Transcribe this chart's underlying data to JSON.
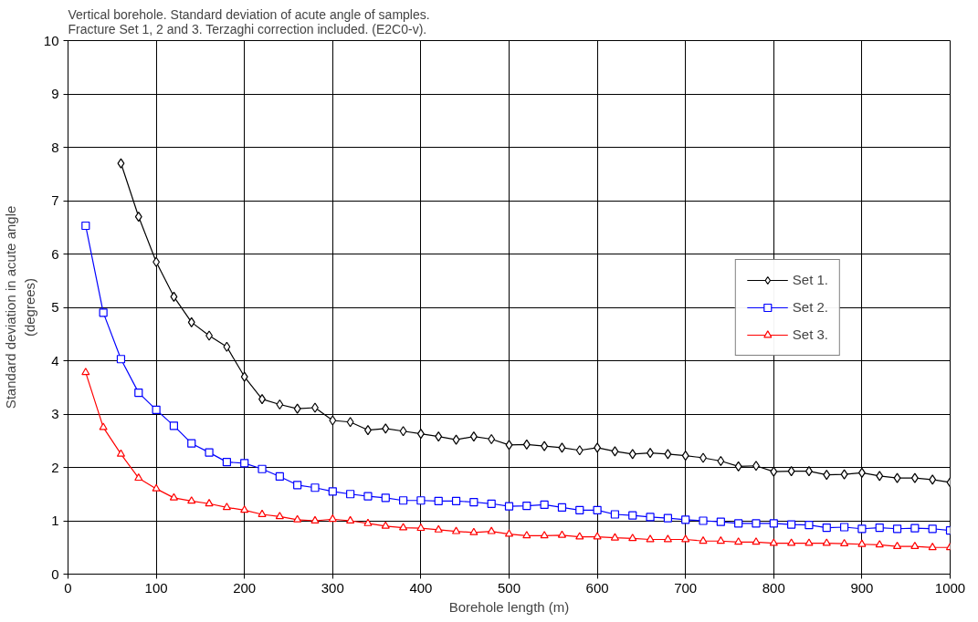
{
  "chart_data": {
    "type": "line",
    "title": "Vertical borehole.  Standard deviation of acute angle of samples.\nFracture Set 1, 2 and 3.  Terzaghi correction included. (E2C0-v).",
    "xlabel": "Borehole length (m)",
    "ylabel": "Standard deviation in acute angle\n(degrees)",
    "xlim": [
      0,
      1000
    ],
    "ylim": [
      0,
      10
    ],
    "xticks": [
      0,
      100,
      200,
      300,
      400,
      500,
      600,
      700,
      800,
      900,
      1000
    ],
    "yticks": [
      0,
      1,
      2,
      3,
      4,
      5,
      6,
      7,
      8,
      9,
      10
    ],
    "grid": true,
    "legend": "right",
    "series": [
      {
        "name": "Set 1.",
        "color": "#000000",
        "marker": "diamond",
        "x": [
          60,
          80,
          100,
          120,
          140,
          160,
          180,
          200,
          220,
          240,
          260,
          280,
          300,
          320,
          340,
          360,
          380,
          400,
          420,
          440,
          460,
          480,
          500,
          520,
          540,
          560,
          580,
          600,
          620,
          640,
          660,
          680,
          700,
          720,
          740,
          760,
          780,
          800,
          820,
          840,
          860,
          880,
          900,
          920,
          940,
          960,
          980,
          1000
        ],
        "values": [
          7.7,
          6.7,
          5.85,
          5.2,
          4.72,
          4.47,
          4.26,
          3.7,
          3.28,
          3.18,
          3.1,
          3.12,
          2.88,
          2.85,
          2.7,
          2.73,
          2.68,
          2.63,
          2.58,
          2.52,
          2.58,
          2.53,
          2.42,
          2.43,
          2.4,
          2.37,
          2.32,
          2.37,
          2.3,
          2.25,
          2.27,
          2.25,
          2.22,
          2.18,
          2.12,
          2.02,
          2.03,
          1.92,
          1.93,
          1.93,
          1.86,
          1.87,
          1.9,
          1.84,
          1.8,
          1.8,
          1.77,
          1.72
        ]
      },
      {
        "name": "Set 2.",
        "color": "#0000ff",
        "marker": "square",
        "x": [
          20,
          40,
          60,
          80,
          100,
          120,
          140,
          160,
          180,
          200,
          220,
          240,
          260,
          280,
          300,
          320,
          340,
          360,
          380,
          400,
          420,
          440,
          460,
          480,
          500,
          520,
          540,
          560,
          580,
          600,
          620,
          640,
          660,
          680,
          700,
          720,
          740,
          760,
          780,
          800,
          820,
          840,
          860,
          880,
          900,
          920,
          940,
          960,
          980,
          1000
        ],
        "values": [
          6.53,
          4.9,
          4.03,
          3.4,
          3.08,
          2.78,
          2.45,
          2.28,
          2.1,
          2.08,
          1.97,
          1.83,
          1.67,
          1.62,
          1.55,
          1.5,
          1.46,
          1.43,
          1.38,
          1.38,
          1.37,
          1.37,
          1.35,
          1.32,
          1.27,
          1.28,
          1.3,
          1.25,
          1.2,
          1.2,
          1.12,
          1.1,
          1.07,
          1.05,
          1.02,
          1.0,
          0.98,
          0.95,
          0.95,
          0.95,
          0.93,
          0.92,
          0.87,
          0.88,
          0.85,
          0.87,
          0.85,
          0.86,
          0.85,
          0.82
        ]
      },
      {
        "name": "Set 3.",
        "color": "#ff0000",
        "marker": "triangle",
        "x": [
          20,
          40,
          60,
          80,
          100,
          120,
          140,
          160,
          180,
          200,
          220,
          240,
          260,
          280,
          300,
          320,
          340,
          360,
          380,
          400,
          420,
          440,
          460,
          480,
          500,
          520,
          540,
          560,
          580,
          600,
          620,
          640,
          660,
          680,
          700,
          720,
          740,
          760,
          780,
          800,
          820,
          840,
          860,
          880,
          900,
          920,
          940,
          960,
          980,
          1000
        ],
        "values": [
          3.78,
          2.75,
          2.25,
          1.8,
          1.6,
          1.43,
          1.37,
          1.32,
          1.25,
          1.2,
          1.12,
          1.08,
          1.02,
          1.0,
          1.03,
          1.0,
          0.95,
          0.9,
          0.87,
          0.86,
          0.83,
          0.8,
          0.78,
          0.8,
          0.75,
          0.72,
          0.72,
          0.73,
          0.7,
          0.7,
          0.68,
          0.67,
          0.65,
          0.65,
          0.65,
          0.62,
          0.62,
          0.6,
          0.6,
          0.58,
          0.58,
          0.58,
          0.58,
          0.57,
          0.56,
          0.55,
          0.52,
          0.52,
          0.5,
          0.5
        ]
      }
    ]
  }
}
